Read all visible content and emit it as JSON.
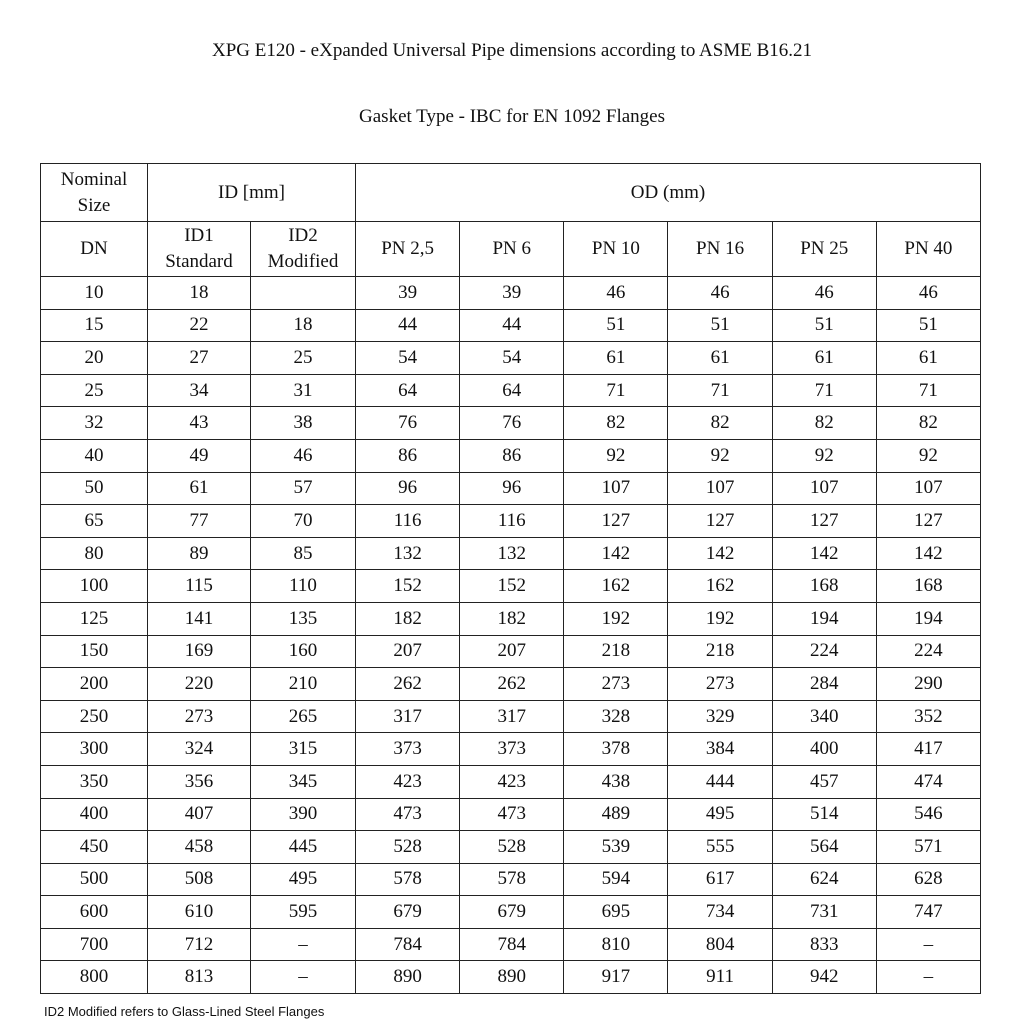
{
  "header": {
    "title": "XPG  E120 - eXpanded Universal Pipe dimensions according to ASME B16.21",
    "subtitle": "Gasket Type - IBC  for EN 1092 Flanges"
  },
  "table": {
    "header_row_1": [
      "Nominal\nSize",
      "ID [mm]",
      "OD (mm)"
    ],
    "header_row_2": [
      "DN",
      "ID1\nStandard",
      "ID2\nModified",
      "PN 2,5",
      "PN 6",
      "PN 10",
      "PN 16",
      "PN 25",
      "PN 40"
    ],
    "rows": [
      [
        10,
        18,
        null,
        39,
        39,
        46,
        46,
        46,
        46
      ],
      [
        15,
        22,
        18,
        44,
        44,
        51,
        51,
        51,
        51
      ],
      [
        20,
        27,
        25,
        54,
        54,
        61,
        61,
        61,
        61
      ],
      [
        25,
        34,
        31,
        64,
        64,
        71,
        71,
        71,
        71
      ],
      [
        32,
        43,
        38,
        76,
        76,
        82,
        82,
        82,
        82
      ],
      [
        40,
        49,
        46,
        86,
        86,
        92,
        92,
        92,
        92
      ],
      [
        50,
        61,
        57,
        96,
        96,
        107,
        107,
        107,
        107
      ],
      [
        65,
        77,
        70,
        116,
        116,
        127,
        127,
        127,
        127
      ],
      [
        80,
        89,
        85,
        132,
        132,
        142,
        142,
        142,
        142
      ],
      [
        100,
        115,
        110,
        152,
        152,
        162,
        162,
        168,
        168
      ],
      [
        125,
        141,
        135,
        182,
        182,
        192,
        192,
        194,
        194
      ],
      [
        150,
        169,
        160,
        207,
        207,
        218,
        218,
        224,
        224
      ],
      [
        200,
        220,
        210,
        262,
        262,
        273,
        273,
        284,
        290
      ],
      [
        250,
        273,
        265,
        317,
        317,
        328,
        329,
        340,
        352
      ],
      [
        300,
        324,
        315,
        373,
        373,
        378,
        384,
        400,
        417
      ],
      [
        350,
        356,
        345,
        423,
        423,
        438,
        444,
        457,
        474
      ],
      [
        400,
        407,
        390,
        473,
        473,
        489,
        495,
        514,
        546
      ],
      [
        450,
        458,
        445,
        528,
        528,
        539,
        555,
        564,
        571
      ],
      [
        500,
        508,
        495,
        578,
        578,
        594,
        617,
        624,
        628
      ],
      [
        600,
        610,
        595,
        679,
        679,
        695,
        734,
        731,
        747
      ],
      [
        700,
        712,
        "–",
        784,
        784,
        810,
        804,
        833,
        "–"
      ],
      [
        800,
        813,
        "–",
        890,
        890,
        917,
        911,
        942,
        "–"
      ]
    ]
  },
  "footnote": "ID2 Modified refers to Glass-Lined Steel Flanges"
}
